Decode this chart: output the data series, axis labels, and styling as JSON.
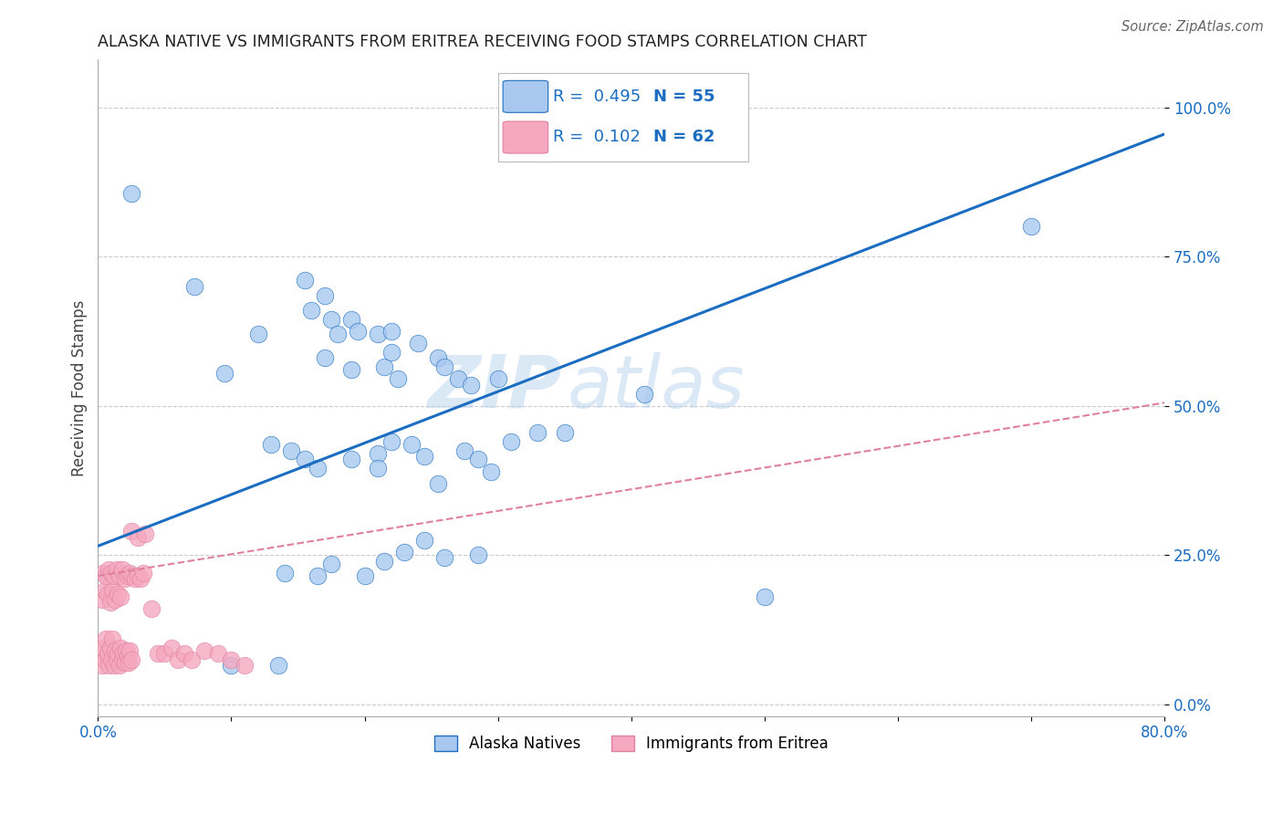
{
  "title": "ALASKA NATIVE VS IMMIGRANTS FROM ERITREA RECEIVING FOOD STAMPS CORRELATION CHART",
  "source": "Source: ZipAtlas.com",
  "ylabel": "Receiving Food Stamps",
  "xlabel": "",
  "xlim": [
    0.0,
    0.8
  ],
  "ylim": [
    -0.02,
    1.08
  ],
  "yticks": [
    0.0,
    0.25,
    0.5,
    0.75,
    1.0
  ],
  "ytick_labels": [
    "0.0%",
    "25.0%",
    "50.0%",
    "75.0%",
    "100.0%"
  ],
  "xticks": [
    0.0,
    0.1,
    0.2,
    0.3,
    0.4,
    0.5,
    0.6,
    0.7,
    0.8
  ],
  "xtick_labels": [
    "0.0%",
    "",
    "",
    "",
    "",
    "",
    "",
    "",
    "80.0%"
  ],
  "blue_R": 0.495,
  "blue_N": 55,
  "pink_R": 0.102,
  "pink_N": 62,
  "blue_color": "#A8C8F0",
  "pink_color": "#F5A8C0",
  "blue_line_color": "#1A6DC0",
  "pink_line_color": "#E080A0",
  "background_color": "#FFFFFF",
  "grid_color": "#CCCCCC",
  "watermark_text": "ZIP",
  "watermark_text2": "atlas",
  "blue_line_x0": 0.0,
  "blue_line_y0": 0.265,
  "blue_line_x1": 0.8,
  "blue_line_y1": 0.955,
  "pink_line_x0": 0.0,
  "pink_line_y0": 0.215,
  "pink_line_x1": 0.8,
  "pink_line_y1": 0.505,
  "blue_scatter_x": [
    0.025,
    0.072,
    0.095,
    0.12,
    0.155,
    0.16,
    0.17,
    0.175,
    0.17,
    0.18,
    0.19,
    0.195,
    0.19,
    0.21,
    0.22,
    0.215,
    0.22,
    0.225,
    0.24,
    0.255,
    0.26,
    0.27,
    0.28,
    0.3,
    0.31,
    0.33,
    0.35,
    0.41,
    0.5,
    0.7,
    0.13,
    0.145,
    0.155,
    0.165,
    0.19,
    0.21,
    0.21,
    0.22,
    0.235,
    0.245,
    0.255,
    0.275,
    0.285,
    0.295,
    0.14,
    0.165,
    0.175,
    0.2,
    0.215,
    0.23,
    0.245,
    0.26,
    0.285,
    0.135,
    0.1
  ],
  "blue_scatter_y": [
    0.855,
    0.7,
    0.555,
    0.62,
    0.71,
    0.66,
    0.685,
    0.645,
    0.58,
    0.62,
    0.645,
    0.625,
    0.56,
    0.62,
    0.625,
    0.565,
    0.59,
    0.545,
    0.605,
    0.58,
    0.565,
    0.545,
    0.535,
    0.545,
    0.44,
    0.455,
    0.455,
    0.52,
    0.18,
    0.8,
    0.435,
    0.425,
    0.41,
    0.395,
    0.41,
    0.42,
    0.395,
    0.44,
    0.435,
    0.415,
    0.37,
    0.425,
    0.41,
    0.39,
    0.22,
    0.215,
    0.235,
    0.215,
    0.24,
    0.255,
    0.275,
    0.245,
    0.25,
    0.065,
    0.065
  ],
  "pink_scatter_x": [
    0.002,
    0.003,
    0.004,
    0.005,
    0.006,
    0.007,
    0.008,
    0.009,
    0.01,
    0.011,
    0.012,
    0.013,
    0.014,
    0.015,
    0.016,
    0.017,
    0.018,
    0.019,
    0.02,
    0.021,
    0.022,
    0.023,
    0.024,
    0.025,
    0.003,
    0.005,
    0.007,
    0.009,
    0.011,
    0.013,
    0.015,
    0.017,
    0.004,
    0.006,
    0.008,
    0.01,
    0.012,
    0.014,
    0.016,
    0.018,
    0.02,
    0.022,
    0.024,
    0.026,
    0.028,
    0.03,
    0.032,
    0.034,
    0.04,
    0.045,
    0.05,
    0.055,
    0.06,
    0.065,
    0.07,
    0.08,
    0.09,
    0.1,
    0.11,
    0.025,
    0.03,
    0.035
  ],
  "pink_scatter_y": [
    0.085,
    0.065,
    0.095,
    0.075,
    0.11,
    0.085,
    0.065,
    0.095,
    0.075,
    0.11,
    0.065,
    0.09,
    0.075,
    0.085,
    0.065,
    0.095,
    0.075,
    0.085,
    0.07,
    0.09,
    0.08,
    0.07,
    0.09,
    0.075,
    0.175,
    0.19,
    0.185,
    0.17,
    0.19,
    0.175,
    0.185,
    0.18,
    0.22,
    0.215,
    0.225,
    0.22,
    0.215,
    0.225,
    0.215,
    0.225,
    0.21,
    0.215,
    0.22,
    0.215,
    0.21,
    0.215,
    0.21,
    0.22,
    0.16,
    0.085,
    0.085,
    0.095,
    0.075,
    0.085,
    0.075,
    0.09,
    0.085,
    0.075,
    0.065,
    0.29,
    0.28,
    0.285
  ]
}
